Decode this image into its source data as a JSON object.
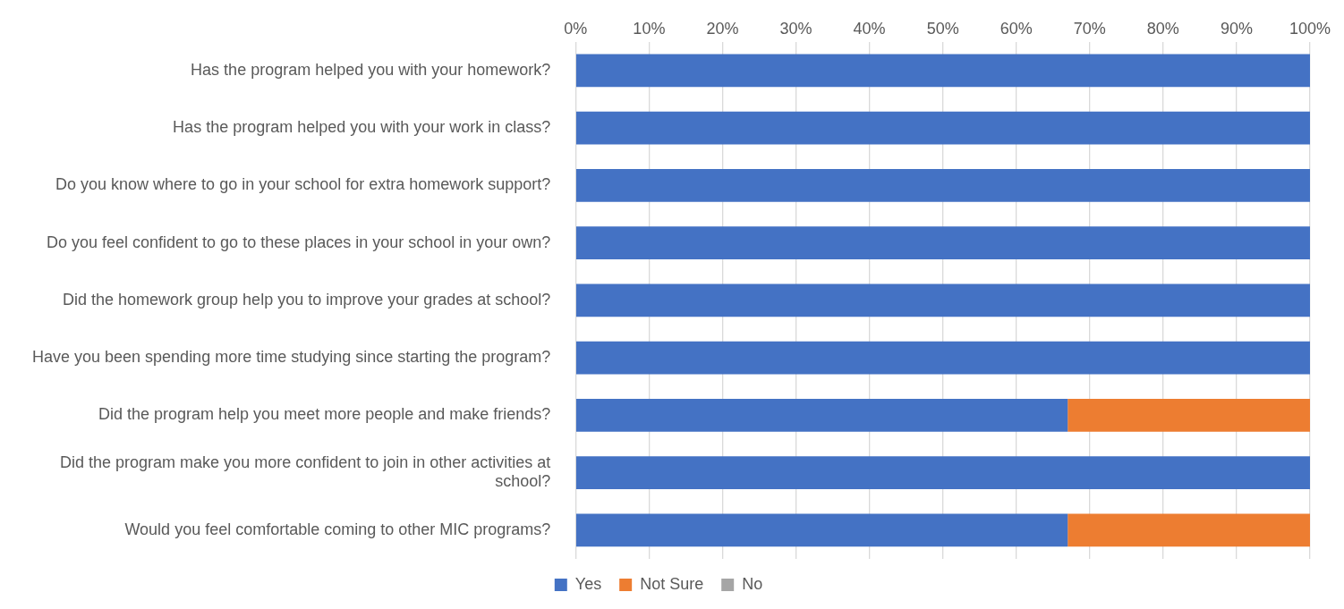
{
  "chart_data": {
    "type": "bar",
    "orientation": "horizontal",
    "stacked": true,
    "categories": [
      "Has the program helped you with your homework?",
      "Has the program helped you with your work in class?",
      "Do you know where to go in your school for extra homework support?",
      "Do you feel confident to go to these places in your school in your own?",
      "Did the homework group help you to improve your grades at school?",
      "Have you been spending more time studying since starting the program?",
      "Did the program help you meet more people and make friends?",
      "Did the program make you more confident to join in other activities at school?",
      "Would you feel comfortable coming to other MIC programs?"
    ],
    "series": [
      {
        "name": "Yes",
        "color": "#4472c4",
        "values": [
          100,
          100,
          100,
          100,
          100,
          100,
          67,
          100,
          67
        ]
      },
      {
        "name": "Not Sure",
        "color": "#ed7d31",
        "values": [
          0,
          0,
          0,
          0,
          0,
          0,
          33,
          0,
          33
        ]
      },
      {
        "name": "No",
        "color": "#a5a5a5",
        "values": [
          0,
          0,
          0,
          0,
          0,
          0,
          0,
          0,
          0
        ]
      }
    ],
    "xlim": [
      0,
      100
    ],
    "xticks": [
      {
        "value": 0,
        "label": "0%"
      },
      {
        "value": 10,
        "label": "10%"
      },
      {
        "value": 20,
        "label": "20%"
      },
      {
        "value": 30,
        "label": "30%"
      },
      {
        "value": 40,
        "label": "40%"
      },
      {
        "value": 50,
        "label": "50%"
      },
      {
        "value": 60,
        "label": "60%"
      },
      {
        "value": 70,
        "label": "70%"
      },
      {
        "value": 80,
        "label": "80%"
      },
      {
        "value": 90,
        "label": "90%"
      },
      {
        "value": 100,
        "label": "100%"
      }
    ],
    "grid": "x",
    "legend": "bottom"
  }
}
